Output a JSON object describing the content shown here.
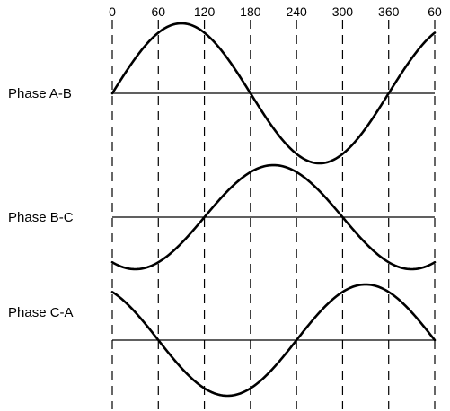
{
  "angle_ticks": [
    {
      "label": "0",
      "angle": 0
    },
    {
      "label": "60",
      "angle": 60
    },
    {
      "label": "120",
      "angle": 120
    },
    {
      "label": "180",
      "angle": 180
    },
    {
      "label": "240",
      "angle": 240
    },
    {
      "label": "300",
      "angle": 300
    },
    {
      "label": "360",
      "angle": 360
    },
    {
      "label": "60",
      "angle": 420
    }
  ],
  "phases": [
    {
      "label": "Phase A-B",
      "phase_shift_deg": 0
    },
    {
      "label": "Phase B-C",
      "phase_shift_deg": -120
    },
    {
      "label": "Phase C-A",
      "phase_shift_deg": 120
    }
  ],
  "angle_range_deg": [
    0,
    420
  ]
}
